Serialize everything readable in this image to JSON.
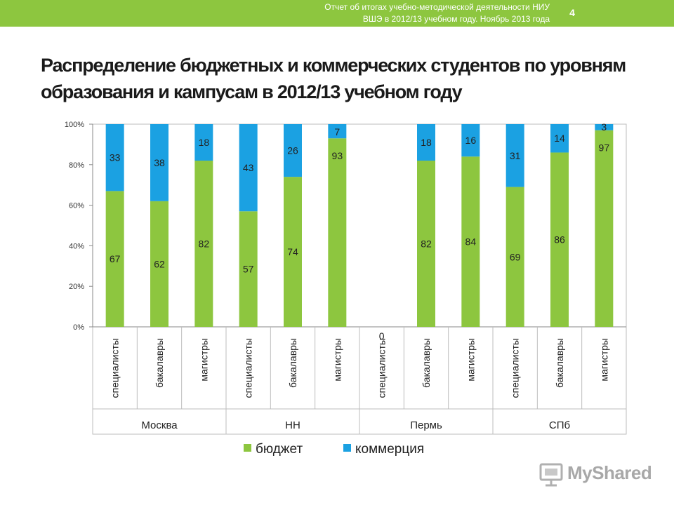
{
  "header": {
    "report_line1": "Отчет об итогах учебно-методической деятельности НИУ",
    "report_line2": "ВШЭ в 2012/13 учебном году. Ноябрь 2013 года",
    "slide_number": "4",
    "accent_color": "#8dc63f"
  },
  "chart_data": {
    "type": "bar",
    "stacked": true,
    "title": "Распределение бюджетных и коммерческих студентов по уровням образования и кампусам в 2012/13 учебном году",
    "groups": [
      "Москва",
      "НН",
      "Пермь",
      "СПб"
    ],
    "categories": [
      "специалисты",
      "бакалавры",
      "магистры",
      "специалисты",
      "бакалавры",
      "магистры",
      "специалисты",
      "бакалавры",
      "магистры",
      "специалисты",
      "бакалавры",
      "магистры"
    ],
    "series": [
      {
        "name": "бюджет",
        "color": "#8dc63f",
        "values": [
          67,
          62,
          82,
          57,
          74,
          93,
          0,
          82,
          84,
          69,
          86,
          97
        ]
      },
      {
        "name": "коммерция",
        "color": "#1ba1e2",
        "values": [
          33,
          38,
          18,
          43,
          26,
          7,
          0,
          18,
          16,
          31,
          14,
          3
        ]
      }
    ],
    "ylim": [
      0,
      100
    ],
    "yticks": [
      "0%",
      "20%",
      "40%",
      "60%",
      "80%",
      "100%"
    ],
    "legend_position": "bottom",
    "grid": false
  },
  "watermark": {
    "text": "MyShared"
  }
}
